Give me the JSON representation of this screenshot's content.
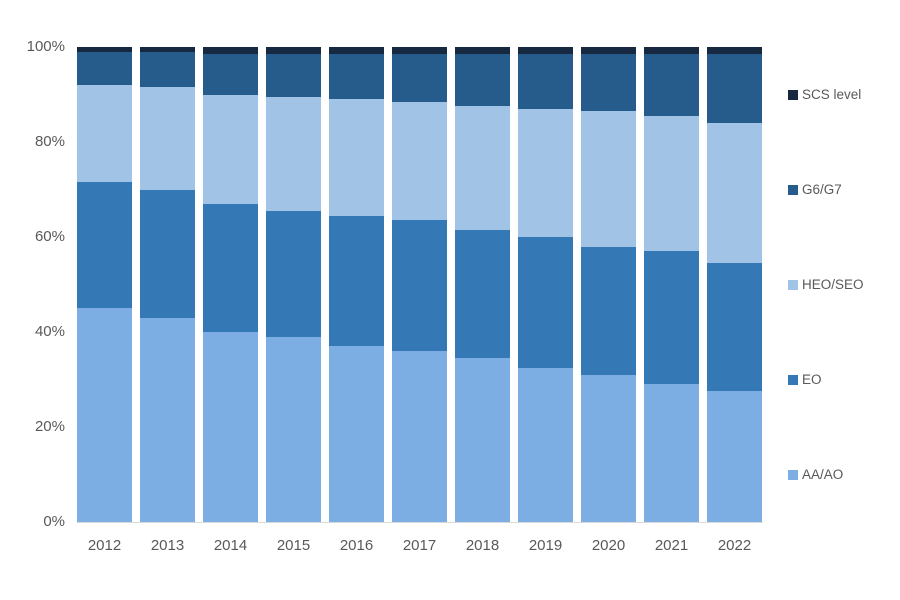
{
  "chart_data": {
    "type": "bar",
    "variant": "100%-stacked-column",
    "title": "",
    "xlabel": "",
    "ylabel": "",
    "ylim": [
      0,
      100
    ],
    "grid": false,
    "legend_position": "right",
    "categories": [
      "2012",
      "2013",
      "2014",
      "2015",
      "2016",
      "2017",
      "2018",
      "2019",
      "2020",
      "2021",
      "2022"
    ],
    "series": [
      {
        "name": "AA/AO",
        "color": "#7CAEE3",
        "values": [
          45,
          43,
          40,
          39,
          37,
          36,
          34.5,
          32.5,
          31,
          29,
          27.5
        ]
      },
      {
        "name": "EO",
        "color": "#3478B6",
        "values": [
          26.5,
          27,
          27,
          26.5,
          27.5,
          27.5,
          27,
          27.5,
          27,
          28,
          27
        ]
      },
      {
        "name": "HEO/SEO",
        "color": "#A0C3E6",
        "values": [
          20.5,
          21.5,
          23,
          24,
          24.5,
          25,
          26,
          27,
          28.5,
          28.5,
          29.5
        ]
      },
      {
        "name": "G6/G7",
        "color": "#265C8B",
        "values": [
          7,
          7.5,
          8.5,
          9,
          9.5,
          10,
          11,
          11.5,
          12,
          13,
          14.5
        ]
      },
      {
        "name": "SCS level",
        "color": "#162940",
        "values": [
          1,
          1,
          1.5,
          1.5,
          1.5,
          1.5,
          1.5,
          1.5,
          1.5,
          1.5,
          1.5
        ]
      }
    ],
    "y_ticks": [
      "100%",
      "80%",
      "60%",
      "40%",
      "20%",
      "0%"
    ],
    "legend_order": [
      "SCS level",
      "G6/G7",
      "HEO/SEO",
      "EO",
      "AA/AO"
    ]
  },
  "style": {
    "axis_text_color": "#595959",
    "axis_line_color": "#D9D9D9",
    "background": "#FFFFFF"
  }
}
